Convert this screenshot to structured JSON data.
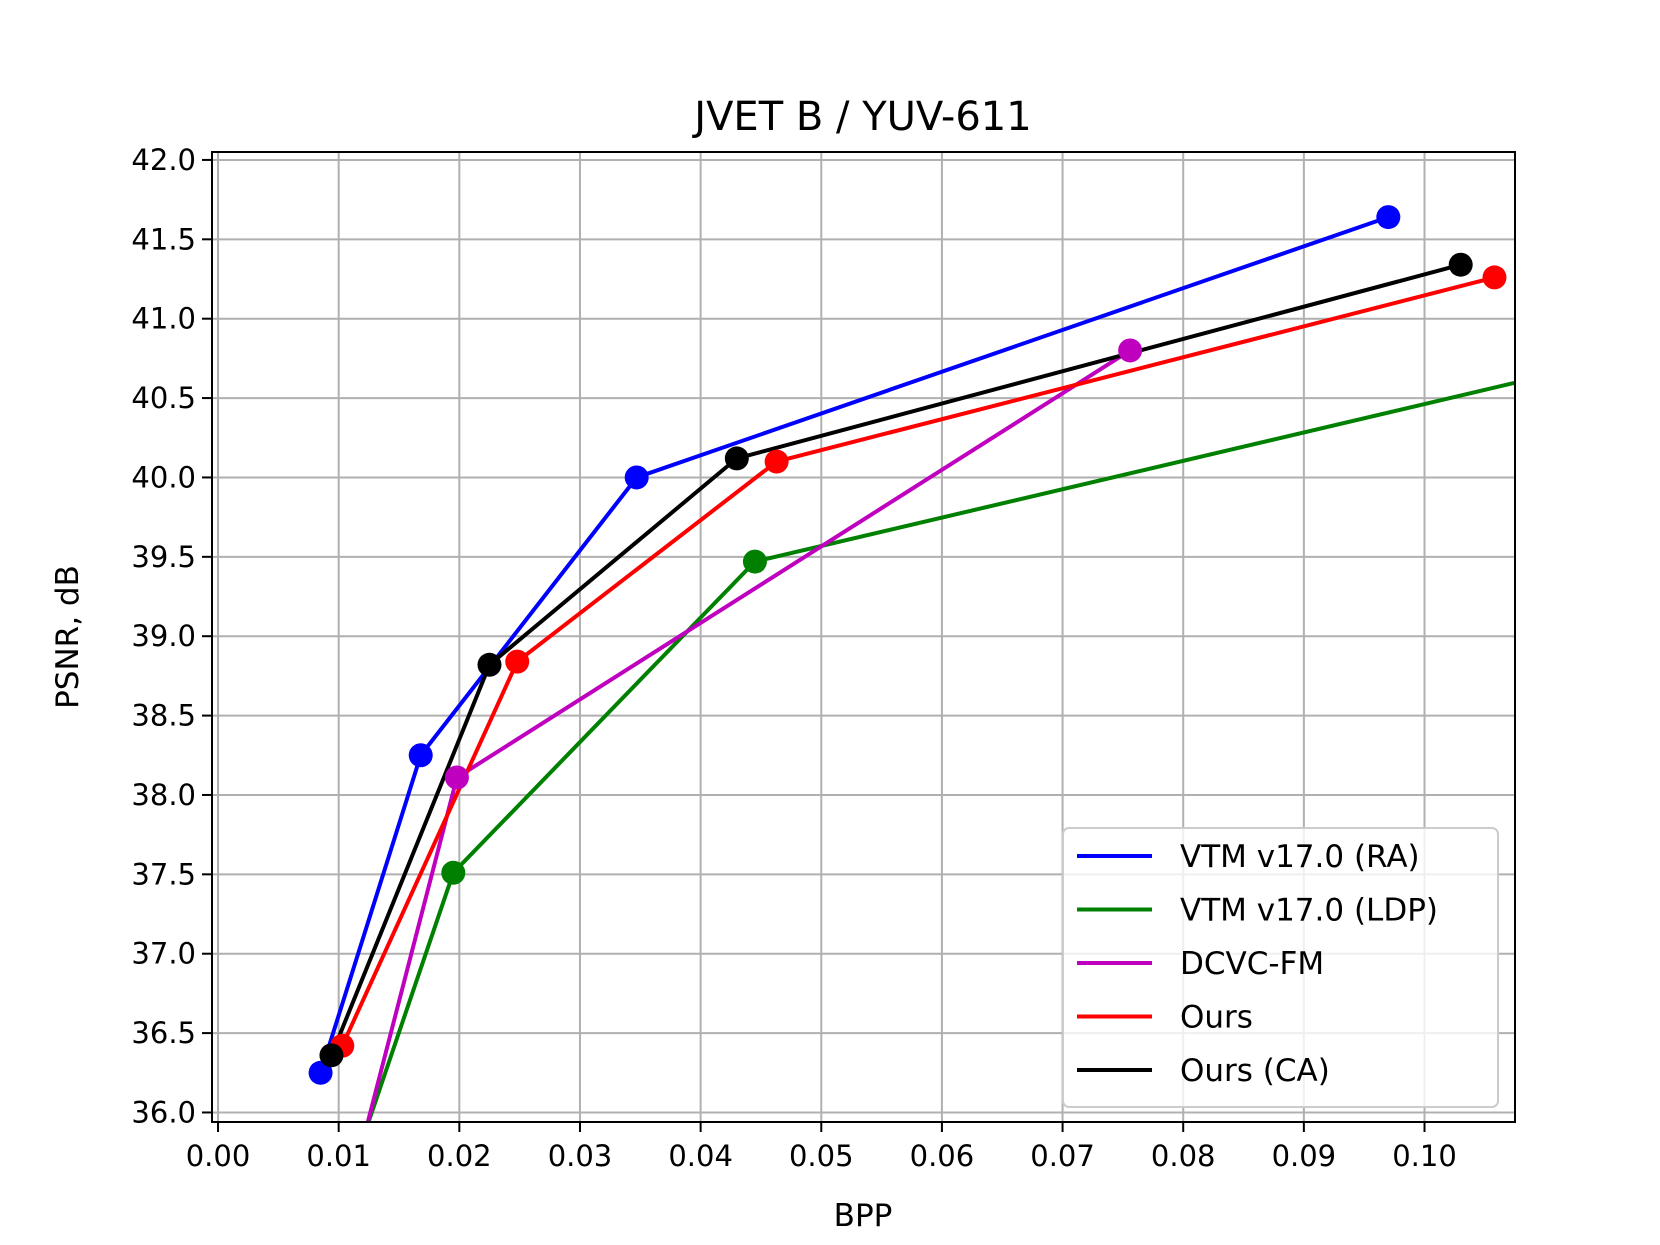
{
  "chart_data": {
    "type": "line",
    "title": "JVET B / YUV-611",
    "xlabel": "BPP",
    "ylabel": "PSNR, dB",
    "xlim": [
      -0.0005,
      0.1075
    ],
    "ylim": [
      35.94,
      42.05
    ],
    "xticks": [
      0.0,
      0.01,
      0.02,
      0.03,
      0.04,
      0.05,
      0.06,
      0.07,
      0.08,
      0.09,
      0.1
    ],
    "xtick_labels": [
      "0.00",
      "0.01",
      "0.02",
      "0.03",
      "0.04",
      "0.05",
      "0.06",
      "0.07",
      "0.08",
      "0.09",
      "0.10"
    ],
    "yticks": [
      36.0,
      36.5,
      37.0,
      37.5,
      38.0,
      38.5,
      39.0,
      39.5,
      40.0,
      40.5,
      41.0,
      41.5,
      42.0
    ],
    "ytick_labels": [
      "36.0",
      "36.5",
      "37.0",
      "37.5",
      "38.0",
      "38.5",
      "39.0",
      "39.5",
      "40.0",
      "40.5",
      "41.0",
      "41.5",
      "42.0"
    ],
    "grid": true,
    "legend_position": "lower right",
    "series": [
      {
        "name": "VTM v17.0 (RA)",
        "color": "#0000ff",
        "points": [
          [
            0.0085,
            36.25
          ],
          [
            0.0168,
            38.25
          ],
          [
            0.0347,
            40.0
          ],
          [
            0.097,
            41.64
          ]
        ]
      },
      {
        "name": "VTM v17.0 (LDP)",
        "color": "#008000",
        "points": [
          [
            0.0114,
            35.7
          ],
          [
            0.0195,
            37.51
          ],
          [
            0.0445,
            39.47
          ],
          [
            0.12,
            40.82
          ]
        ]
      },
      {
        "name": "DCVC-FM",
        "color": "#bf00bf",
        "points": [
          [
            0.0116,
            35.7
          ],
          [
            0.0198,
            38.11
          ],
          [
            0.0756,
            40.8
          ]
        ]
      },
      {
        "name": "Ours",
        "color": "#ff0000",
        "points": [
          [
            0.0103,
            36.42
          ],
          [
            0.0248,
            38.84
          ],
          [
            0.0463,
            40.1
          ],
          [
            0.1058,
            41.26
          ]
        ]
      },
      {
        "name": "Ours (CA)",
        "color": "#000000",
        "points": [
          [
            0.0094,
            36.36
          ],
          [
            0.0225,
            38.82
          ],
          [
            0.043,
            40.12
          ],
          [
            0.103,
            41.34
          ]
        ]
      }
    ]
  }
}
